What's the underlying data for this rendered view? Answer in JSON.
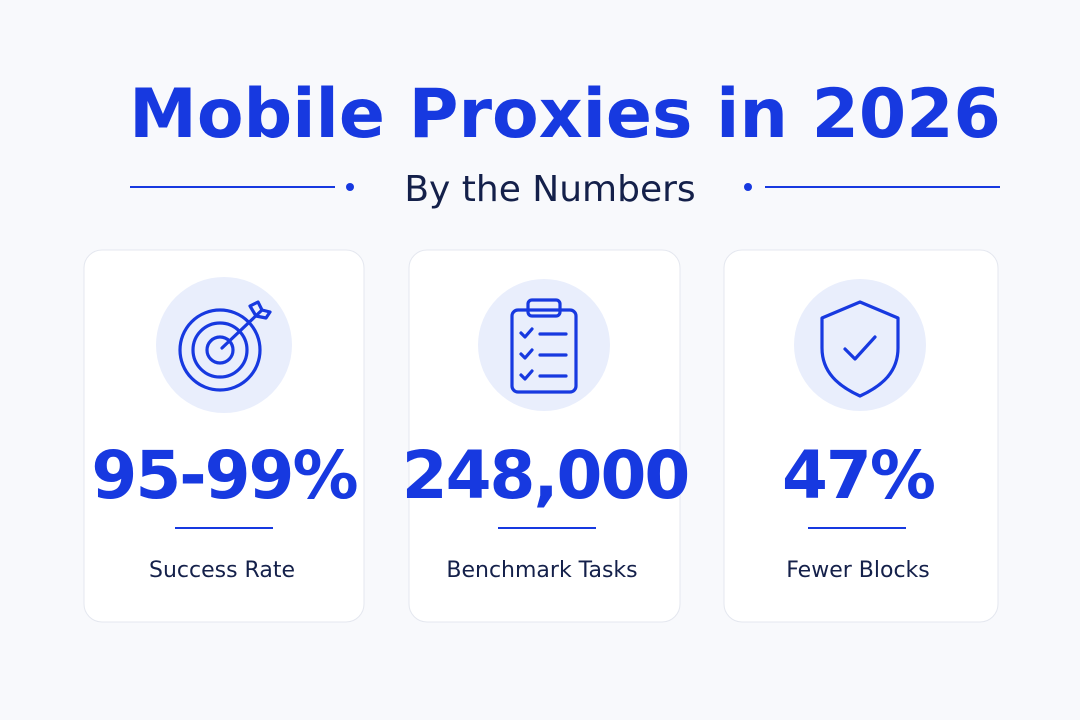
{
  "header": {
    "title": "Mobile Proxies in 2026",
    "subtitle": "By the Numbers"
  },
  "cards": [
    {
      "stat": "95-99%",
      "label": "Success Rate"
    },
    {
      "stat": "248,000",
      "label": "Benchmark Tasks"
    },
    {
      "stat": "47%",
      "label": "Fewer Blocks"
    }
  ]
}
